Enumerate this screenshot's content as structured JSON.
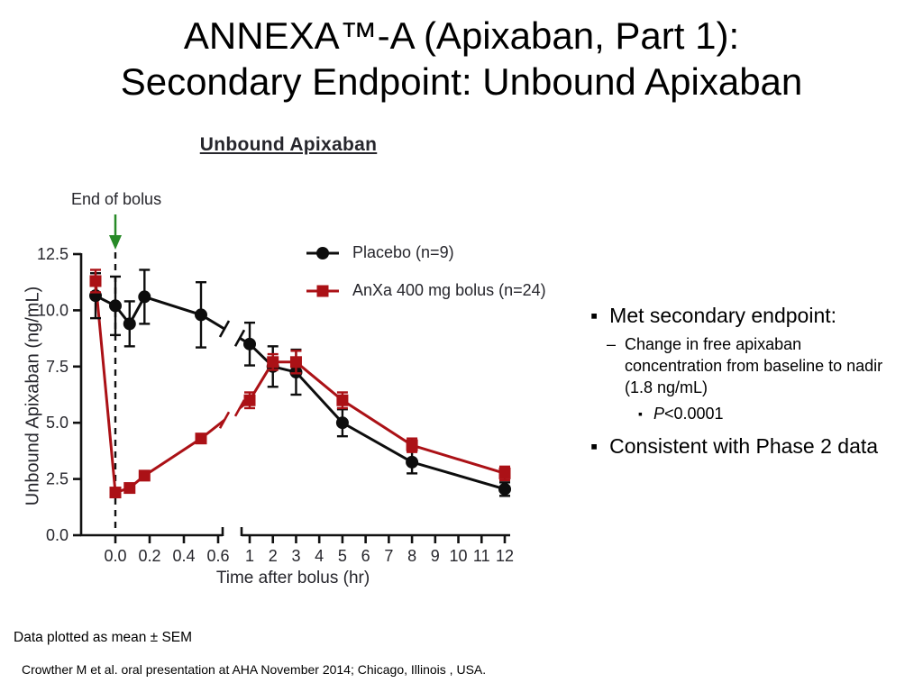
{
  "title": {
    "line1": "ANNEXA™-A (Apixaban, Part 1):",
    "line2": "Secondary Endpoint: Unbound Apixaban"
  },
  "chart_data": {
    "type": "line",
    "title": "Unbound Apixaban",
    "annotation": {
      "text": "End of bolus",
      "at_x": 0.0
    },
    "legend_position": "inside-top-right",
    "error_bars": "SEM",
    "x_axis": {
      "label": "Time after bolus (hr)",
      "has_break": true,
      "break_between": [
        0.6,
        1
      ],
      "segment1_ticks": [
        "0.0",
        "0.2",
        "0.4",
        "0.6"
      ],
      "segment2_ticks": [
        "1",
        "2",
        "3",
        "4",
        "5",
        "6",
        "7",
        "8",
        "9",
        "10",
        "11",
        "12"
      ]
    },
    "y_axis": {
      "label": "Unbound Apixaban (ng/mL)",
      "range": [
        0,
        12.5
      ],
      "ticks": [
        "0.0",
        "2.5",
        "5.0",
        "7.5",
        "10.0",
        "12.5"
      ]
    },
    "series": [
      {
        "name": "Placebo (n=9)",
        "marker": "circle",
        "color": "#0d0d0d",
        "x": [
          -0.1,
          0.0,
          0.083,
          0.17,
          0.5,
          1,
          2,
          3,
          5,
          8,
          12
        ],
        "y": [
          10.65,
          10.2,
          9.4,
          10.6,
          9.8,
          8.5,
          7.5,
          7.25,
          5.0,
          3.25,
          2.05
        ],
        "sem": [
          1.0,
          1.3,
          1.0,
          1.2,
          1.45,
          0.95,
          0.9,
          1.0,
          0.6,
          0.5,
          0.3
        ]
      },
      {
        "name": "AnXa 400 mg bolus (n=24)",
        "marker": "square",
        "color": "#ab1116",
        "x": [
          -0.1,
          0.0,
          0.083,
          0.17,
          0.5,
          1,
          2,
          3,
          5,
          8,
          12
        ],
        "y": [
          11.3,
          1.9,
          2.1,
          2.65,
          4.3,
          6.0,
          7.7,
          7.7,
          6.0,
          4.0,
          2.75
        ],
        "sem": [
          0.5,
          0.15,
          0.15,
          0.2,
          0.2,
          0.35,
          0.35,
          0.5,
          0.35,
          0.3,
          0.3
        ]
      }
    ]
  },
  "side_panel": {
    "bullet_char": "▪",
    "dash_char": "–",
    "point1": "Met secondary endpoint:",
    "point1_sub_lines": [
      "Change in free apixaban",
      "concentration from baseline to nadir",
      "(1.8 ng/mL)"
    ],
    "p_label": "P",
    "p_value": "<0.0001",
    "point2": "Consistent with Phase 2 data"
  },
  "footer": {
    "note": "Data plotted as mean ± SEM",
    "citation": "Crowther M et al. oral presentation at AHA November 2014; Chicago, Illinois , USA."
  },
  "colors": {
    "chart_line": "#111111",
    "chart_text": "#26262c",
    "arrow_green": "#278a27",
    "placebo_series": "#0d0d0d",
    "anxa_series": "#ab1116"
  }
}
